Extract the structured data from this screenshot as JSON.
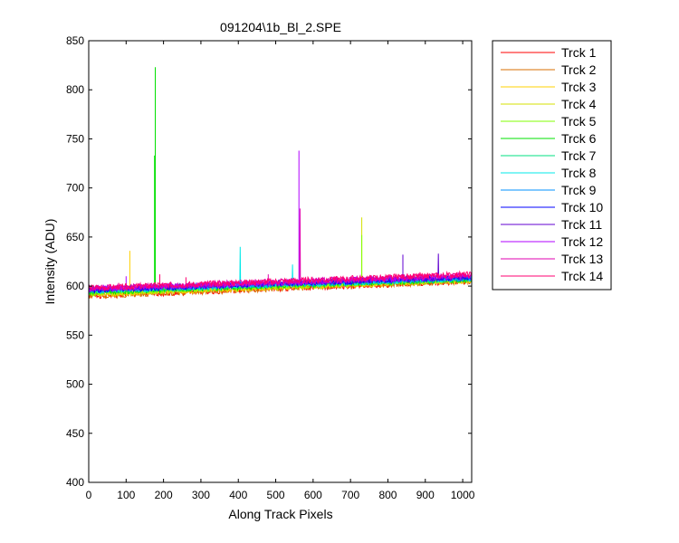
{
  "chart_data": {
    "type": "line",
    "title": "091204\\1b_Bl_2.SPE",
    "xlabel": "Along Track Pixels",
    "ylabel": "Intensity (ADU)",
    "xlim": [
      0,
      1024
    ],
    "ylim": [
      400,
      850
    ],
    "xticks": [
      0,
      100,
      200,
      300,
      400,
      500,
      600,
      700,
      800,
      900,
      1000
    ],
    "yticks": [
      400,
      450,
      500,
      550,
      600,
      650,
      700,
      750,
      800,
      850
    ],
    "grid": false,
    "legend_position": "outside-top-right",
    "series": [
      {
        "name": "Trck 1",
        "color": "#ff0000",
        "start": 590,
        "end": 605,
        "spikes": []
      },
      {
        "name": "Trck 2",
        "color": "#d96f00",
        "start": 590,
        "end": 605,
        "spikes": []
      },
      {
        "name": "Trck 3",
        "color": "#ffd000",
        "start": 592,
        "end": 606,
        "spikes": [
          {
            "x": 110,
            "y": 636
          }
        ]
      },
      {
        "name": "Trck 4",
        "color": "#d4e000",
        "start": 592,
        "end": 606,
        "spikes": [
          {
            "x": 730,
            "y": 670
          }
        ]
      },
      {
        "name": "Trck 5",
        "color": "#80ff00",
        "start": 593,
        "end": 607,
        "spikes": [
          {
            "x": 730,
            "y": 652
          }
        ]
      },
      {
        "name": "Trck 6",
        "color": "#00e000",
        "start": 594,
        "end": 607,
        "spikes": [
          {
            "x": 178,
            "y": 823
          },
          {
            "x": 176,
            "y": 733
          }
        ]
      },
      {
        "name": "Trck 7",
        "color": "#00e080",
        "start": 595,
        "end": 608,
        "spikes": []
      },
      {
        "name": "Trck 8",
        "color": "#00e8e8",
        "start": 595,
        "end": 608,
        "spikes": [
          {
            "x": 405,
            "y": 640
          },
          {
            "x": 545,
            "y": 622
          }
        ]
      },
      {
        "name": "Trck 9",
        "color": "#0090ff",
        "start": 596,
        "end": 608,
        "spikes": []
      },
      {
        "name": "Trck 10",
        "color": "#0000ff",
        "start": 596,
        "end": 609,
        "spikes": [
          {
            "x": 0,
            "y": 578
          }
        ]
      },
      {
        "name": "Trck 11",
        "color": "#6000d0",
        "start": 597,
        "end": 609,
        "spikes": [
          {
            "x": 840,
            "y": 632
          },
          {
            "x": 935,
            "y": 633
          }
        ]
      },
      {
        "name": "Trck 12",
        "color": "#b000ff",
        "start": 597,
        "end": 610,
        "spikes": [
          {
            "x": 562,
            "y": 738
          },
          {
            "x": 100,
            "y": 610
          }
        ]
      },
      {
        "name": "Trck 13",
        "color": "#e000b0",
        "start": 598,
        "end": 611,
        "spikes": [
          {
            "x": 565,
            "y": 679
          },
          {
            "x": 480,
            "y": 612
          }
        ]
      },
      {
        "name": "Trck 14",
        "color": "#ff0070",
        "start": 598,
        "end": 612,
        "spikes": [
          {
            "x": 190,
            "y": 612
          },
          {
            "x": 260,
            "y": 609
          }
        ]
      }
    ]
  }
}
